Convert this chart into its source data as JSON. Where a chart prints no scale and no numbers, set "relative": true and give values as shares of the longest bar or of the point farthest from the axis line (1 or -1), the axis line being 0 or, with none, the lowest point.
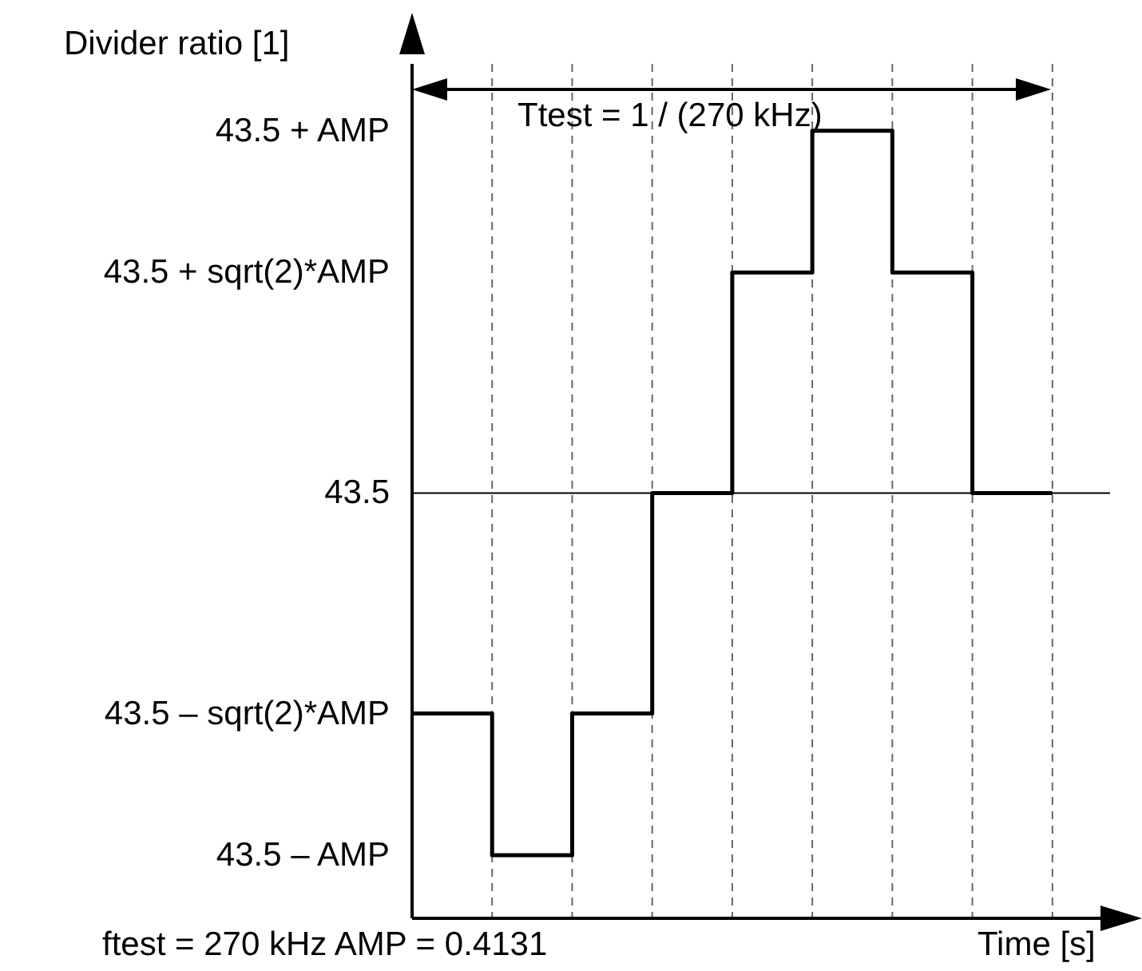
{
  "chart_data": {
    "type": "step",
    "ylabel": "Divider ratio [1]",
    "xlabel": "Time [s]",
    "annotations": [
      "Ttest = 1 / (270 kHz)",
      "ftest = 270 kHz AMP = 0.4131",
      "43.5 + AMP",
      "43.5 + sqrt(2)*AMP",
      "43.5",
      "43.5 – sqrt(2)*AMP",
      "43.5 – AMP"
    ],
    "relative": true,
    "categories": [
      null,
      null,
      null,
      null,
      null,
      null,
      null,
      null,
      null
    ],
    "series": [
      {
        "color": "#000000",
        "values": [
          0.26,
          0.08,
          0.26,
          0.54,
          0.82,
          1,
          0.82,
          0.54,
          0.54
        ]
      }
    ],
    "ref_lines": [
      {
        "axis": "y",
        "value": 0.54,
        "color": "#000000"
      }
    ],
    "grid": "x",
    "line_style": "solid",
    "marker": "none"
  }
}
